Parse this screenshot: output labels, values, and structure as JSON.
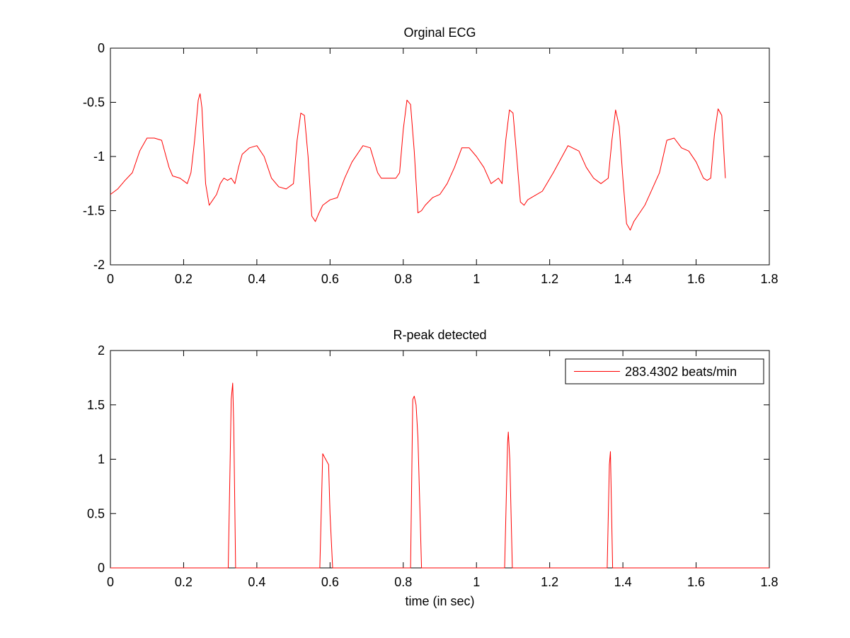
{
  "chart_data": [
    {
      "type": "line",
      "title": "Orginal ECG",
      "xlabel": "",
      "ylabel": "",
      "xlim": [
        0,
        1.8
      ],
      "ylim": [
        -2,
        0
      ],
      "xticks": [
        "0",
        "0.2",
        "0.4",
        "0.6",
        "0.8",
        "1",
        "1.2",
        "1.4",
        "1.6",
        "1.8"
      ],
      "yticks": [
        "-2",
        "-1.5",
        "-1",
        "-0.5",
        "0"
      ],
      "grid": false,
      "legend": null,
      "series": [
        {
          "color": "#ff0000",
          "x": [
            0.0,
            0.02,
            0.04,
            0.06,
            0.08,
            0.1,
            0.12,
            0.14,
            0.16,
            0.17,
            0.19,
            0.21,
            0.22,
            0.23,
            0.24,
            0.245,
            0.25,
            0.255,
            0.26,
            0.27,
            0.28,
            0.29,
            0.3,
            0.31,
            0.32,
            0.33,
            0.34,
            0.35,
            0.36,
            0.38,
            0.4,
            0.42,
            0.44,
            0.46,
            0.48,
            0.5,
            0.51,
            0.52,
            0.53,
            0.54,
            0.55,
            0.56,
            0.57,
            0.58,
            0.6,
            0.62,
            0.64,
            0.66,
            0.69,
            0.71,
            0.73,
            0.74,
            0.76,
            0.78,
            0.79,
            0.8,
            0.81,
            0.82,
            0.83,
            0.84,
            0.85,
            0.86,
            0.88,
            0.9,
            0.92,
            0.94,
            0.96,
            0.98,
            1.0,
            1.02,
            1.04,
            1.06,
            1.07,
            1.08,
            1.09,
            1.1,
            1.11,
            1.12,
            1.13,
            1.14,
            1.15,
            1.18,
            1.21,
            1.25,
            1.28,
            1.3,
            1.32,
            1.34,
            1.36,
            1.37,
            1.38,
            1.39,
            1.4,
            1.41,
            1.42,
            1.43,
            1.44,
            1.46,
            1.48,
            1.5,
            1.52,
            1.54,
            1.56,
            1.58,
            1.6,
            1.62,
            1.63,
            1.64,
            1.65,
            1.66,
            1.67,
            1.68
          ],
          "y": [
            -1.35,
            -1.3,
            -1.22,
            -1.15,
            -0.95,
            -0.83,
            -0.83,
            -0.85,
            -1.1,
            -1.18,
            -1.2,
            -1.25,
            -1.15,
            -0.85,
            -0.48,
            -0.42,
            -0.55,
            -0.9,
            -1.25,
            -1.45,
            -1.4,
            -1.35,
            -1.25,
            -1.2,
            -1.22,
            -1.2,
            -1.25,
            -1.1,
            -0.98,
            -0.92,
            -0.9,
            -1.0,
            -1.2,
            -1.28,
            -1.3,
            -1.25,
            -0.85,
            -0.6,
            -0.62,
            -1.0,
            -1.55,
            -1.6,
            -1.52,
            -1.45,
            -1.4,
            -1.38,
            -1.2,
            -1.05,
            -0.9,
            -0.92,
            -1.15,
            -1.2,
            -1.2,
            -1.2,
            -1.15,
            -0.75,
            -0.48,
            -0.52,
            -0.95,
            -1.52,
            -1.5,
            -1.45,
            -1.38,
            -1.35,
            -1.25,
            -1.1,
            -0.92,
            -0.92,
            -1.0,
            -1.1,
            -1.25,
            -1.2,
            -1.25,
            -0.85,
            -0.57,
            -0.6,
            -1.0,
            -1.42,
            -1.45,
            -1.4,
            -1.38,
            -1.32,
            -1.15,
            -0.9,
            -0.95,
            -1.1,
            -1.2,
            -1.25,
            -1.2,
            -0.85,
            -0.57,
            -0.72,
            -1.2,
            -1.62,
            -1.68,
            -1.6,
            -1.55,
            -1.45,
            -1.3,
            -1.15,
            -0.85,
            -0.83,
            -0.92,
            -0.95,
            -1.05,
            -1.2,
            -1.22,
            -1.2,
            -0.8,
            -0.56,
            -0.62,
            -1.2
          ]
        }
      ]
    },
    {
      "type": "line",
      "title": "R-peak detected",
      "xlabel": "time (in sec)",
      "ylabel": "",
      "xlim": [
        0,
        1.8
      ],
      "ylim": [
        0,
        2
      ],
      "xticks": [
        "0",
        "0.2",
        "0.4",
        "0.6",
        "0.8",
        "1",
        "1.2",
        "1.4",
        "1.6",
        "1.8"
      ],
      "yticks": [
        "0",
        "0.5",
        "1",
        "1.5",
        "2"
      ],
      "grid": false,
      "legend": "top-right",
      "series": [
        {
          "name": "283.4302 beats/min",
          "color": "#ff0000",
          "x": [
            0.0,
            0.322,
            0.33,
            0.334,
            0.337,
            0.342,
            0.572,
            0.58,
            0.588,
            0.596,
            0.6,
            0.607,
            0.82,
            0.826,
            0.83,
            0.835,
            0.84,
            0.85,
            1.077,
            1.085,
            1.087,
            1.091,
            1.098,
            1.357,
            1.363,
            1.366,
            1.372,
            1.8
          ],
          "y": [
            0,
            0,
            1.55,
            1.7,
            1.3,
            0,
            0,
            1.05,
            1.0,
            0.95,
            0.5,
            0,
            0,
            1.55,
            1.58,
            1.5,
            1.2,
            0,
            0,
            1.15,
            1.25,
            1.0,
            0,
            0,
            0.95,
            1.07,
            0,
            0
          ]
        }
      ]
    }
  ]
}
